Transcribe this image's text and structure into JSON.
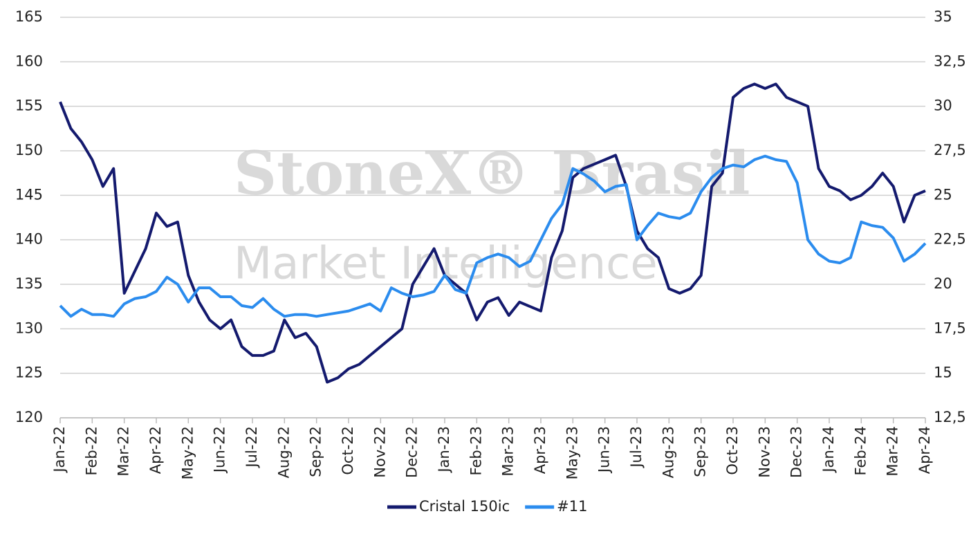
{
  "chart_data": {
    "type": "line",
    "watermark": [
      "StoneX® Brasil",
      "Market Intelligence"
    ],
    "categories": [
      "Jan-22",
      null,
      null,
      "Feb-22",
      null,
      null,
      "Mar-22",
      null,
      null,
      "Apr-22",
      null,
      null,
      "May-22",
      null,
      null,
      "Jun-22",
      null,
      null,
      "Jul-22",
      null,
      null,
      "Aug-22",
      null,
      null,
      "Sep-22",
      null,
      null,
      "Oct-22",
      null,
      null,
      "Nov-22",
      null,
      null,
      "Dec-22",
      null,
      null,
      "Jan-23",
      null,
      null,
      "Feb-23",
      null,
      null,
      "Mar-23",
      null,
      null,
      "Apr-23",
      null,
      null,
      "May-23",
      null,
      null,
      "Jun-23",
      null,
      null,
      "Jul-23",
      null,
      null,
      "Aug-23",
      null,
      null,
      "Sep-23",
      null,
      null,
      "Oct-23",
      null,
      null,
      "Nov-23",
      null,
      null,
      "Dec-23",
      null,
      null,
      "Jan-24",
      null,
      null,
      "Feb-24",
      null,
      null,
      "Mar-24",
      null,
      null,
      "Apr-24"
    ],
    "series": [
      {
        "name": "Cristal 150ic",
        "color": "#141a6e",
        "axis": "y",
        "values": [
          155.5,
          152.5,
          151,
          149,
          146,
          148,
          134,
          136.5,
          139,
          143,
          141.5,
          142,
          136,
          133,
          131,
          130,
          131,
          128,
          127,
          127,
          127.5,
          131,
          129,
          129.5,
          128,
          124,
          124.5,
          125.5,
          126,
          127,
          128,
          129,
          130,
          135,
          137,
          139,
          136,
          135,
          134,
          131,
          133,
          133.5,
          131.5,
          133,
          132.5,
          132,
          138,
          141,
          147,
          148,
          148.5,
          149,
          149.5,
          146,
          141,
          139,
          138,
          134.5,
          134,
          134.5,
          136,
          146,
          147.5,
          156,
          157,
          157.5,
          157,
          157.5,
          156,
          155.5,
          155,
          148,
          146,
          145.5,
          144.5,
          145,
          146,
          147.5,
          146,
          142,
          145,
          145.5
        ]
      },
      {
        "name": "#11",
        "color": "#2b8cee",
        "axis": "y2",
        "values": [
          18.8,
          18.2,
          18.6,
          18.3,
          18.3,
          18.2,
          18.9,
          19.2,
          19.3,
          19.6,
          20.4,
          20,
          19,
          19.8,
          19.8,
          19.3,
          19.3,
          18.8,
          18.7,
          19.2,
          18.6,
          18.2,
          18.3,
          18.3,
          18.2,
          18.3,
          18.4,
          18.5,
          18.7,
          18.9,
          18.5,
          19.8,
          19.5,
          19.3,
          19.4,
          19.6,
          20.5,
          19.7,
          19.5,
          21.2,
          21.5,
          21.7,
          21.5,
          21,
          21.3,
          22.5,
          23.7,
          24.5,
          26.5,
          26.2,
          25.8,
          25.2,
          25.5,
          25.6,
          22.5,
          23.3,
          24,
          23.8,
          23.7,
          24,
          25.2,
          26,
          26.5,
          26.7,
          26.6,
          27,
          27.2,
          27,
          26.9,
          25.7,
          22.5,
          21.7,
          21.3,
          21.2,
          21.5,
          23.5,
          23.3,
          23.2,
          22.6,
          21.3,
          21.7,
          22.3
        ]
      }
    ],
    "ylim": [
      120,
      165
    ],
    "yticks": [
      120,
      125,
      130,
      135,
      140,
      145,
      150,
      155,
      160,
      165
    ],
    "y2lim": [
      12.5,
      35
    ],
    "y2ticks": [
      {
        "value": 12.5,
        "label": "12,5"
      },
      15,
      {
        "value": 17.5,
        "label": "17,5"
      },
      20,
      {
        "value": 22.5,
        "label": "22,5"
      },
      25,
      {
        "value": 27.5,
        "label": "27,5"
      },
      30,
      {
        "value": 32.5,
        "label": "32,5"
      },
      35
    ],
    "grid": true,
    "legend": "bottom"
  }
}
